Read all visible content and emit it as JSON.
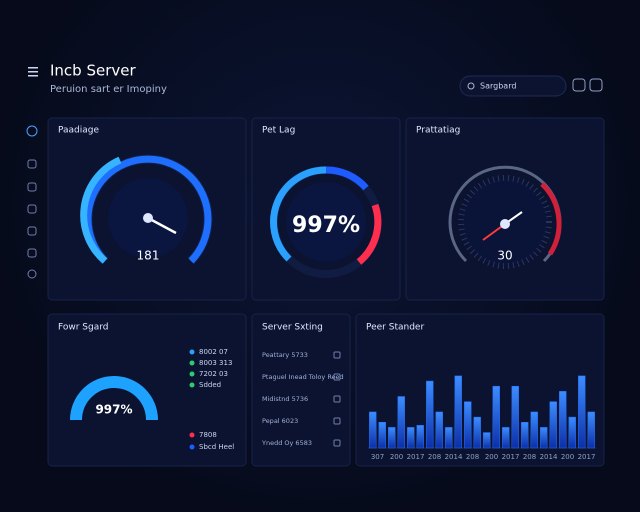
{
  "header": {
    "title": "Incb Server",
    "subtitle": "Peruion sart er Imopiny",
    "search": "Sargbard"
  },
  "panels": [
    {
      "title": "Paadiage",
      "value": "181"
    },
    {
      "title": "Pet Lag",
      "value": "997%"
    },
    {
      "title": "Prattatiag",
      "value": "30"
    },
    {
      "title": "Fowr Sgard",
      "value": "997%",
      "legend": [
        "8002 07",
        "8003 313",
        "7202 03",
        "Sdded",
        "7808",
        "Sbcd Heel"
      ]
    },
    {
      "title": "Server Sxting",
      "rows": [
        "Peattary 5733",
        "Ptaguel Inead Toloy Reed",
        "Midistnd 5736",
        "Pepal 6023",
        "Ynedd Oy 6583"
      ]
    }
  ],
  "chart_data": {
    "type": "bar",
    "title": "Peer Stander",
    "categories": [
      "307",
      null,
      "200",
      null,
      "2017",
      null,
      "208",
      null,
      "2014",
      null,
      "208",
      null,
      "200",
      null,
      "2017",
      null,
      "208",
      null,
      "2014",
      null,
      "200",
      null,
      "2017",
      null
    ],
    "values": [
      35,
      25,
      20,
      50,
      20,
      22,
      65,
      35,
      20,
      70,
      45,
      30,
      15,
      60,
      20,
      60,
      25,
      35,
      20,
      45,
      55,
      30,
      70,
      35
    ],
    "color": "#1f6fff",
    "ylim": [
      0,
      100
    ]
  }
}
